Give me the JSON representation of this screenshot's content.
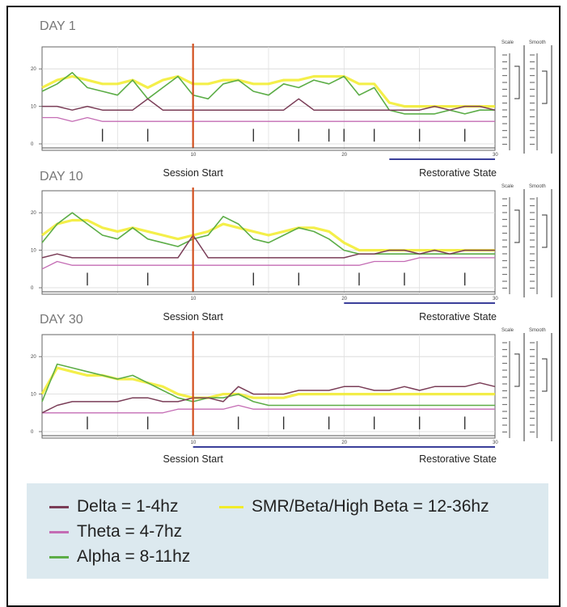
{
  "chart_data": [
    {
      "type": "line",
      "title": "DAY 1",
      "x_ticks": [
        "10",
        "20",
        "30"
      ],
      "y_ticks": [
        "0",
        "10",
        "20"
      ],
      "ylim": [
        0,
        25
      ],
      "xlim": [
        0,
        30
      ],
      "annotations": {
        "session_start": "Session Start",
        "restorative_state": "Restorative State"
      },
      "session_start_x": 10,
      "restorative_start_x": 23,
      "spikes_x": [
        4,
        7,
        10,
        14,
        17,
        19,
        20,
        22,
        25,
        28
      ],
      "series": [
        {
          "name": "Alpha",
          "x": [
            0,
            1,
            2,
            3,
            4,
            5,
            6,
            7,
            8,
            9,
            10,
            11,
            12,
            13,
            14,
            15,
            16,
            17,
            18,
            19,
            20,
            21,
            22,
            23,
            24,
            25,
            26,
            27,
            28,
            29,
            30
          ],
          "values": [
            14,
            16,
            19,
            15,
            14,
            13,
            17,
            12,
            15,
            18,
            13,
            12,
            16,
            17,
            14,
            13,
            16,
            15,
            17,
            16,
            18,
            13,
            15,
            9,
            8,
            8,
            8,
            9,
            8,
            9,
            9
          ]
        },
        {
          "name": "SMR/Beta/High Beta",
          "x": [
            0,
            1,
            2,
            3,
            4,
            5,
            6,
            7,
            8,
            9,
            10,
            11,
            12,
            13,
            14,
            15,
            16,
            17,
            18,
            19,
            20,
            21,
            22,
            23,
            24,
            25,
            26,
            27,
            28,
            29,
            30
          ],
          "values": [
            15,
            17,
            18,
            17,
            16,
            16,
            17,
            15,
            17,
            18,
            16,
            16,
            17,
            17,
            16,
            16,
            17,
            17,
            18,
            18,
            18,
            16,
            16,
            11,
            10,
            10,
            10,
            10,
            10,
            10,
            10
          ]
        },
        {
          "name": "Delta",
          "x": [
            0,
            1,
            2,
            3,
            4,
            5,
            6,
            7,
            8,
            9,
            10,
            11,
            12,
            13,
            14,
            15,
            16,
            17,
            18,
            19,
            20,
            21,
            22,
            23,
            24,
            25,
            26,
            27,
            28,
            29,
            30
          ],
          "values": [
            10,
            10,
            9,
            10,
            9,
            9,
            9,
            12,
            9,
            9,
            9,
            9,
            9,
            9,
            9,
            9,
            9,
            12,
            9,
            9,
            9,
            9,
            9,
            9,
            9,
            9,
            10,
            9,
            10,
            10,
            9
          ]
        },
        {
          "name": "Theta",
          "x": [
            0,
            1,
            2,
            3,
            4,
            5,
            6,
            7,
            8,
            9,
            10,
            11,
            12,
            13,
            14,
            15,
            16,
            17,
            18,
            19,
            20,
            21,
            22,
            23,
            24,
            25,
            26,
            27,
            28,
            29,
            30
          ],
          "values": [
            7,
            7,
            6,
            7,
            6,
            6,
            6,
            6,
            6,
            6,
            6,
            6,
            6,
            6,
            6,
            6,
            6,
            6,
            6,
            6,
            6,
            6,
            6,
            6,
            6,
            6,
            6,
            6,
            6,
            6,
            6
          ]
        }
      ]
    },
    {
      "type": "line",
      "title": "DAY 10",
      "x_ticks": [
        "10",
        "20",
        "30"
      ],
      "y_ticks": [
        "0",
        "10",
        "20"
      ],
      "ylim": [
        0,
        25
      ],
      "xlim": [
        0,
        30
      ],
      "annotations": {
        "session_start": "Session Start",
        "restorative_state": "Restorative State"
      },
      "session_start_x": 10,
      "restorative_start_x": 20,
      "spikes_x": [
        3,
        7,
        10,
        14,
        17,
        21,
        24,
        28
      ],
      "series": [
        {
          "name": "Alpha",
          "x": [
            0,
            1,
            2,
            3,
            4,
            5,
            6,
            7,
            8,
            9,
            10,
            11,
            12,
            13,
            14,
            15,
            16,
            17,
            18,
            19,
            20,
            21,
            22,
            23,
            24,
            25,
            26,
            27,
            28,
            29,
            30
          ],
          "values": [
            12,
            17,
            20,
            17,
            14,
            13,
            16,
            13,
            12,
            11,
            13,
            14,
            19,
            17,
            13,
            12,
            14,
            16,
            15,
            13,
            10,
            9,
            9,
            9,
            9,
            9,
            9,
            9,
            9,
            9,
            9
          ]
        },
        {
          "name": "SMR/Beta/High Beta",
          "x": [
            0,
            1,
            2,
            3,
            4,
            5,
            6,
            7,
            8,
            9,
            10,
            11,
            12,
            13,
            14,
            15,
            16,
            17,
            18,
            19,
            20,
            21,
            22,
            23,
            24,
            25,
            26,
            27,
            28,
            29,
            30
          ],
          "values": [
            14,
            17,
            18,
            18,
            16,
            15,
            16,
            15,
            14,
            13,
            14,
            15,
            17,
            16,
            15,
            14,
            15,
            16,
            16,
            15,
            12,
            10,
            10,
            10,
            10,
            10,
            10,
            10,
            10,
            10,
            10
          ]
        },
        {
          "name": "Delta",
          "x": [
            0,
            1,
            2,
            3,
            4,
            5,
            6,
            7,
            8,
            9,
            10,
            11,
            12,
            13,
            14,
            15,
            16,
            17,
            18,
            19,
            20,
            21,
            22,
            23,
            24,
            25,
            26,
            27,
            28,
            29,
            30
          ],
          "values": [
            8,
            9,
            8,
            8,
            8,
            8,
            8,
            8,
            8,
            8,
            14,
            8,
            8,
            8,
            8,
            8,
            8,
            8,
            8,
            8,
            8,
            9,
            9,
            10,
            10,
            9,
            10,
            9,
            10,
            10,
            10
          ]
        },
        {
          "name": "Theta",
          "x": [
            0,
            1,
            2,
            3,
            4,
            5,
            6,
            7,
            8,
            9,
            10,
            11,
            12,
            13,
            14,
            15,
            16,
            17,
            18,
            19,
            20,
            21,
            22,
            23,
            24,
            25,
            26,
            27,
            28,
            29,
            30
          ],
          "values": [
            5,
            7,
            6,
            6,
            6,
            6,
            6,
            6,
            6,
            6,
            6,
            6,
            6,
            6,
            6,
            6,
            6,
            6,
            6,
            6,
            6,
            6,
            7,
            7,
            7,
            8,
            8,
            8,
            8,
            8,
            8
          ]
        }
      ]
    },
    {
      "type": "line",
      "title": "DAY 30",
      "x_ticks": [
        "10",
        "20",
        "30"
      ],
      "y_ticks": [
        "0",
        "10",
        "20"
      ],
      "ylim": [
        0,
        25
      ],
      "xlim": [
        0,
        30
      ],
      "annotations": {
        "session_start": "Session Start",
        "restorative_state": "Restorative State"
      },
      "session_start_x": 10,
      "restorative_start_x": 10,
      "spikes_x": [
        3,
        7,
        10,
        13,
        16,
        19,
        22,
        25,
        28
      ],
      "series": [
        {
          "name": "Alpha",
          "x": [
            0,
            1,
            2,
            3,
            4,
            5,
            6,
            7,
            8,
            9,
            10,
            11,
            12,
            13,
            14,
            15,
            16,
            17,
            18,
            19,
            20,
            21,
            22,
            23,
            24,
            25,
            26,
            27,
            28,
            29,
            30
          ],
          "values": [
            8,
            18,
            17,
            16,
            15,
            14,
            15,
            13,
            11,
            9,
            8,
            9,
            9,
            10,
            8,
            7,
            7,
            7,
            7,
            7,
            7,
            7,
            7,
            7,
            7,
            7,
            7,
            7,
            7,
            7,
            7
          ]
        },
        {
          "name": "SMR/Beta/High Beta",
          "x": [
            0,
            1,
            2,
            3,
            4,
            5,
            6,
            7,
            8,
            9,
            10,
            11,
            12,
            13,
            14,
            15,
            16,
            17,
            18,
            19,
            20,
            21,
            22,
            23,
            24,
            25,
            26,
            27,
            28,
            29,
            30
          ],
          "values": [
            10,
            17,
            16,
            15,
            15,
            14,
            14,
            13,
            12,
            10,
            9,
            9,
            10,
            10,
            9,
            9,
            9,
            10,
            10,
            10,
            10,
            10,
            10,
            10,
            10,
            10,
            10,
            10,
            10,
            10,
            10
          ]
        },
        {
          "name": "Delta",
          "x": [
            0,
            1,
            2,
            3,
            4,
            5,
            6,
            7,
            8,
            9,
            10,
            11,
            12,
            13,
            14,
            15,
            16,
            17,
            18,
            19,
            20,
            21,
            22,
            23,
            24,
            25,
            26,
            27,
            28,
            29,
            30
          ],
          "values": [
            5,
            7,
            8,
            8,
            8,
            8,
            9,
            9,
            8,
            8,
            9,
            9,
            8,
            12,
            10,
            10,
            10,
            11,
            11,
            11,
            12,
            12,
            11,
            11,
            12,
            11,
            12,
            12,
            12,
            13,
            12
          ]
        },
        {
          "name": "Theta",
          "x": [
            0,
            1,
            2,
            3,
            4,
            5,
            6,
            7,
            8,
            9,
            10,
            11,
            12,
            13,
            14,
            15,
            16,
            17,
            18,
            19,
            20,
            21,
            22,
            23,
            24,
            25,
            26,
            27,
            28,
            29,
            30
          ],
          "values": [
            5,
            5,
            5,
            5,
            5,
            5,
            5,
            5,
            5,
            6,
            6,
            6,
            6,
            7,
            6,
            6,
            6,
            6,
            6,
            6,
            6,
            6,
            6,
            6,
            6,
            6,
            6,
            6,
            6,
            6,
            6
          ]
        }
      ]
    }
  ],
  "legend": {
    "items": [
      {
        "label": "Delta = 1-4hz",
        "color": "#7a3d57"
      },
      {
        "label": "SMR/Beta/High Beta = 12-36hz",
        "color": "#f2ec2a"
      },
      {
        "label": "Theta = 4-7hz",
        "color": "#c46cb4"
      },
      {
        "label": "Alpha = 8-11hz",
        "color": "#5cad47"
      }
    ]
  },
  "colors": {
    "delta": "#7a3d57",
    "theta": "#c46cb4",
    "alpha": "#5cad47",
    "smr_beta": "#f2ec2a",
    "session_line": "#d2501f",
    "restorative_bar": "#3b3f9a",
    "legend_bg": "#dce9ef"
  },
  "side_panel_labels": [
    "Scale",
    "Smooth"
  ]
}
